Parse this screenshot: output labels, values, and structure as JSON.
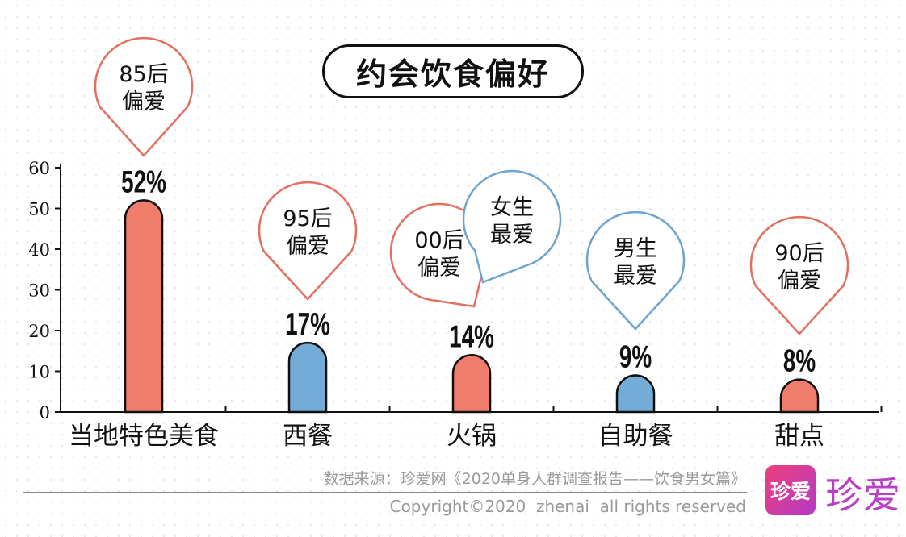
{
  "title": "约会饮食偏好",
  "chart_data": {
    "type": "bar",
    "title": "约会饮食偏好",
    "categories": [
      "当地特色美食",
      "西餐",
      "火锅",
      "自助餐",
      "甜点"
    ],
    "values": [
      52,
      17,
      14,
      9,
      8
    ],
    "value_labels": [
      "52%",
      "17%",
      "14%",
      "9%",
      "8%"
    ],
    "ylim": [
      0,
      60
    ],
    "yticks": [
      0,
      10,
      20,
      30,
      40,
      50,
      60
    ],
    "grid": false,
    "legend": "none",
    "bar_colors": [
      "#f07c6c",
      "#74acd8",
      "#f07c6c",
      "#74acd8",
      "#f07c6c"
    ],
    "annotations": [
      {
        "category": "当地特色美食",
        "lines": [
          "85后",
          "偏爱"
        ],
        "color": "#e2705f"
      },
      {
        "category": "西餐",
        "lines": [
          "95后",
          "偏爱"
        ],
        "color": "#e2705f"
      },
      {
        "category": "火锅",
        "lines": [
          "00后",
          "偏爱"
        ],
        "color": "#e2705f"
      },
      {
        "category": "火锅",
        "lines": [
          "女生",
          "最爱"
        ],
        "color": "#6ea5cf"
      },
      {
        "category": "自助餐",
        "lines": [
          "男生",
          "最爱"
        ],
        "color": "#6ea5cf"
      },
      {
        "category": "甜点",
        "lines": [
          "90后",
          "偏爱"
        ],
        "color": "#e2705f"
      }
    ]
  },
  "footer": {
    "source": "数据来源：珍爱网《2020单身人群调查报告——饮食男女篇》",
    "copyright": "Copyright©2020  zhenai  all rights reserved"
  },
  "logo": {
    "box_text": "珍爱",
    "text": "珍爱",
    "color": "#b93fc6"
  },
  "colors": {
    "coral": "#f07c6c",
    "blue": "#74acd8",
    "outline": "#111111"
  }
}
